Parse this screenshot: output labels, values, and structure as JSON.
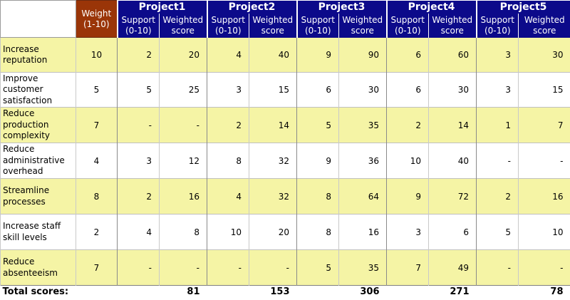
{
  "header": {
    "weight_line1": "Weight",
    "weight_line2": "(1-10)",
    "projects": [
      "Project1",
      "Project2",
      "Project3",
      "Project4",
      "Project5"
    ],
    "support_line1": "Support",
    "support_line2": "(0-10)",
    "weighted_line1": "Weighted",
    "weighted_line2": "score"
  },
  "rows": [
    {
      "criterion": [
        "Increase",
        "reputation"
      ],
      "weight": "10",
      "scores": [
        [
          "2",
          "20"
        ],
        [
          "4",
          "40"
        ],
        [
          "9",
          "90"
        ],
        [
          "6",
          "60"
        ],
        [
          "3",
          "30"
        ]
      ]
    },
    {
      "criterion": [
        "Improve",
        "customer",
        "satisfaction"
      ],
      "weight": "5",
      "scores": [
        [
          "5",
          "25"
        ],
        [
          "3",
          "15"
        ],
        [
          "6",
          "30"
        ],
        [
          "6",
          "30"
        ],
        [
          "3",
          "15"
        ]
      ]
    },
    {
      "criterion": [
        "Reduce",
        "production",
        "complexity"
      ],
      "weight": "7",
      "scores": [
        [
          "-",
          "-"
        ],
        [
          "2",
          "14"
        ],
        [
          "5",
          "35"
        ],
        [
          "2",
          "14"
        ],
        [
          "1",
          "7"
        ]
      ]
    },
    {
      "criterion": [
        "Reduce",
        "administrative",
        "overhead"
      ],
      "weight": "4",
      "scores": [
        [
          "3",
          "12"
        ],
        [
          "8",
          "32"
        ],
        [
          "9",
          "36"
        ],
        [
          "10",
          "40"
        ],
        [
          "-",
          "-"
        ]
      ]
    },
    {
      "criterion": [
        "Streamline",
        "processes"
      ],
      "weight": "8",
      "scores": [
        [
          "2",
          "16"
        ],
        [
          "4",
          "32"
        ],
        [
          "8",
          "64"
        ],
        [
          "9",
          "72"
        ],
        [
          "2",
          "16"
        ]
      ]
    },
    {
      "criterion": [
        "Increase staff",
        "skill levels"
      ],
      "weight": "2",
      "scores": [
        [
          "4",
          "8"
        ],
        [
          "10",
          "20"
        ],
        [
          "8",
          "16"
        ],
        [
          "3",
          "6"
        ],
        [
          "5",
          "10"
        ]
      ]
    },
    {
      "criterion": [
        "Reduce",
        "absenteeism"
      ],
      "weight": "7",
      "scores": [
        [
          "-",
          "-"
        ],
        [
          "-",
          "-"
        ],
        [
          "5",
          "35"
        ],
        [
          "7",
          "49"
        ],
        [
          "-",
          "-"
        ]
      ]
    }
  ],
  "totals": {
    "label": "Total scores:",
    "values": [
      "81",
      "153",
      "306",
      "271",
      "78"
    ]
  }
}
